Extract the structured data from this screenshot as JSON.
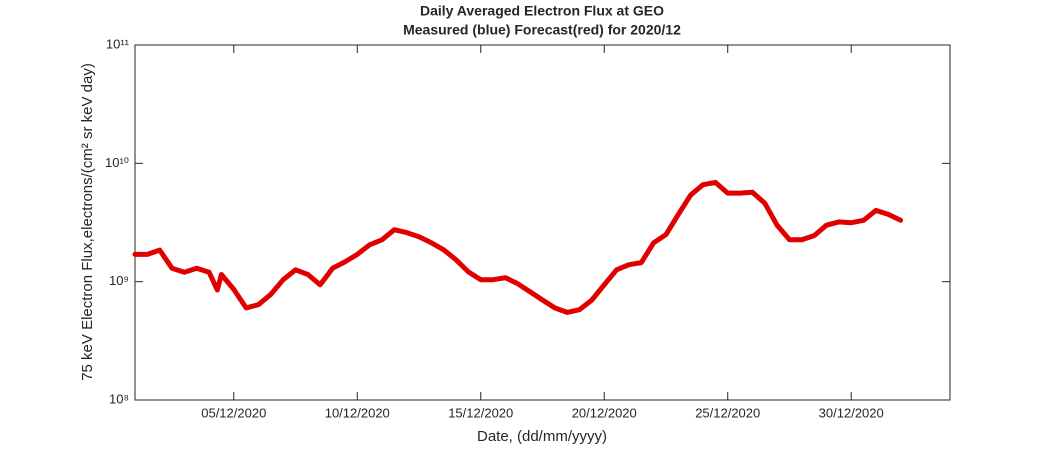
{
  "chart_data": {
    "type": "line",
    "title": "Daily Averaged Electron Flux at GEO",
    "subtitle": "Measured (blue) Forecast(red) for 2020/12",
    "x_label": "Date, (dd/mm/yyyy)",
    "y_label": "75 keV Electron Flux,electrons/(cm² sr keV day)",
    "log_y": true,
    "xlim": [
      "2020-12-01T00:00",
      "2021-01-03T00:00"
    ],
    "xticks": [
      {
        "value": "2020-12-05T00:00",
        "label": "05/12/2020"
      },
      {
        "value": "2020-12-10T00:00",
        "label": "10/12/2020"
      },
      {
        "value": "2020-12-15T00:00",
        "label": "15/12/2020"
      },
      {
        "value": "2020-12-20T00:00",
        "label": "20/12/2020"
      },
      {
        "value": "2020-12-25T00:00",
        "label": "25/12/2020"
      },
      {
        "value": "2020-12-30T00:00",
        "label": "30/12/2020"
      }
    ],
    "ylim": [
      100000000,
      100000000000
    ],
    "yticks": [
      {
        "value": 100000000,
        "label": "10⁸"
      },
      {
        "value": 1000000000,
        "label": "10⁹"
      },
      {
        "value": 10000000000,
        "label": "10¹⁰"
      },
      {
        "value": 100000000000,
        "label": "10¹¹"
      }
    ],
    "x": [
      "2020-12-01T00:00",
      "2020-12-01T12:00",
      "2020-12-02T00:00",
      "2020-12-02T12:00",
      "2020-12-03T00:00",
      "2020-12-03T12:00",
      "2020-12-04T00:00",
      "2020-12-04T08:00",
      "2020-12-04T12:00",
      "2020-12-05T00:00",
      "2020-12-05T12:00",
      "2020-12-06T00:00",
      "2020-12-06T12:00",
      "2020-12-07T00:00",
      "2020-12-07T12:00",
      "2020-12-08T00:00",
      "2020-12-08T12:00",
      "2020-12-09T00:00",
      "2020-12-09T12:00",
      "2020-12-10T00:00",
      "2020-12-10T12:00",
      "2020-12-11T00:00",
      "2020-12-11T12:00",
      "2020-12-12T00:00",
      "2020-12-12T12:00",
      "2020-12-13T00:00",
      "2020-12-13T12:00",
      "2020-12-14T00:00",
      "2020-12-14T12:00",
      "2020-12-15T00:00",
      "2020-12-15T12:00",
      "2020-12-16T00:00",
      "2020-12-16T12:00",
      "2020-12-17T00:00",
      "2020-12-17T12:00",
      "2020-12-18T00:00",
      "2020-12-18T12:00",
      "2020-12-19T00:00",
      "2020-12-19T12:00",
      "2020-12-20T00:00",
      "2020-12-20T12:00",
      "2020-12-21T00:00",
      "2020-12-21T12:00",
      "2020-12-22T00:00",
      "2020-12-22T12:00",
      "2020-12-23T00:00",
      "2020-12-23T12:00",
      "2020-12-24T00:00",
      "2020-12-24T12:00",
      "2020-12-25T00:00",
      "2020-12-25T12:00",
      "2020-12-26T00:00",
      "2020-12-26T12:00",
      "2020-12-27T00:00",
      "2020-12-27T12:00",
      "2020-12-28T00:00",
      "2020-12-28T12:00",
      "2020-12-29T00:00",
      "2020-12-29T12:00",
      "2020-12-30T00:00",
      "2020-12-30T12:00",
      "2020-12-31T00:00",
      "2020-12-31T12:00",
      "2021-01-01T00:00"
    ],
    "series": [
      {
        "name": "Forecast",
        "color": "#e00000",
        "values": [
          1700000000,
          1700000000,
          1850000000,
          1300000000,
          1200000000,
          1300000000,
          1200000000,
          850000000,
          1150000000,
          860000000,
          600000000,
          640000000,
          780000000,
          1040000000,
          1260000000,
          1150000000,
          940000000,
          1300000000,
          1470000000,
          1700000000,
          2050000000,
          2260000000,
          2750000000,
          2600000000,
          2400000000,
          2130000000,
          1860000000,
          1530000000,
          1210000000,
          1040000000,
          1040000000,
          1080000000,
          960000000,
          820000000,
          700000000,
          600000000,
          550000000,
          580000000,
          700000000,
          940000000,
          1260000000,
          1390000000,
          1450000000,
          2130000000,
          2500000000,
          3700000000,
          5400000000,
          6600000000,
          6900000000,
          5600000000,
          5600000000,
          5700000000,
          4600000000,
          3000000000,
          2260000000,
          2260000000,
          2450000000,
          3000000000,
          3200000000,
          3150000000,
          3300000000,
          4000000000,
          3700000000,
          3300000000
        ]
      }
    ]
  }
}
